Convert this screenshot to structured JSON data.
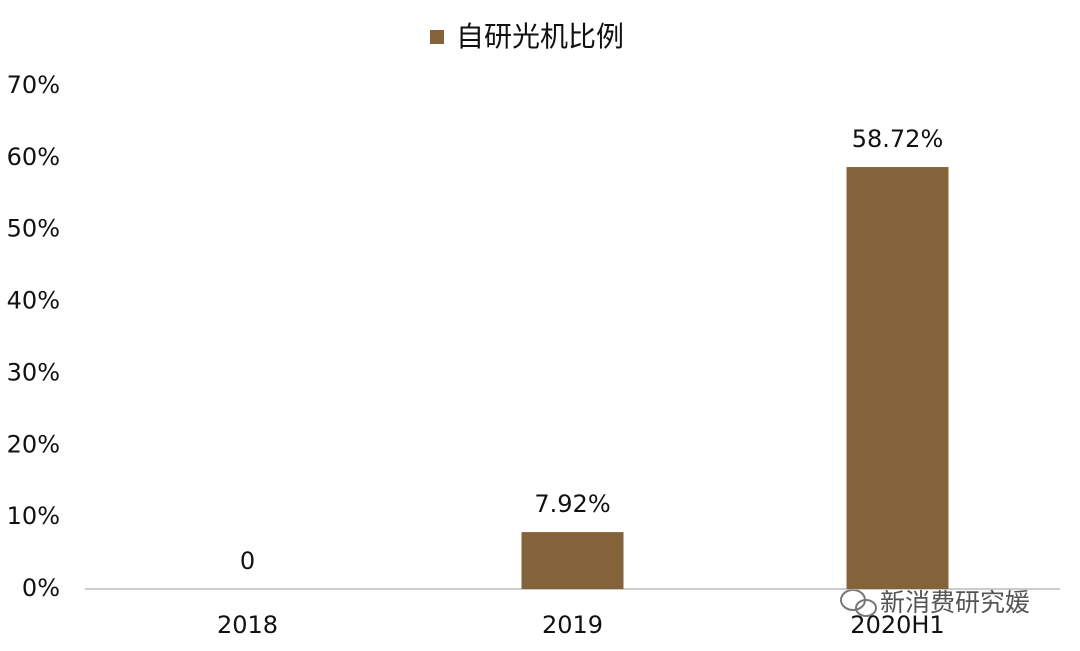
{
  "chart_data": {
    "type": "bar",
    "legend_label": "自研光机比例",
    "categories": [
      "2018",
      "2019",
      "2020H1"
    ],
    "values": [
      0,
      7.92,
      58.72
    ],
    "value_labels": [
      "0",
      "7.92%",
      "58.72%"
    ],
    "color": "#85633a",
    "ylim": [
      0,
      70
    ],
    "yticks": [
      {
        "value": 0,
        "label": "0%"
      },
      {
        "value": 10,
        "label": "10%"
      },
      {
        "value": 20,
        "label": "20%"
      },
      {
        "value": 30,
        "label": "30%"
      },
      {
        "value": 40,
        "label": "40%"
      },
      {
        "value": 50,
        "label": "50%"
      },
      {
        "value": 60,
        "label": "60%"
      },
      {
        "value": 70,
        "label": "70%"
      }
    ],
    "grid": false,
    "watermark": "新消费研究媛"
  }
}
